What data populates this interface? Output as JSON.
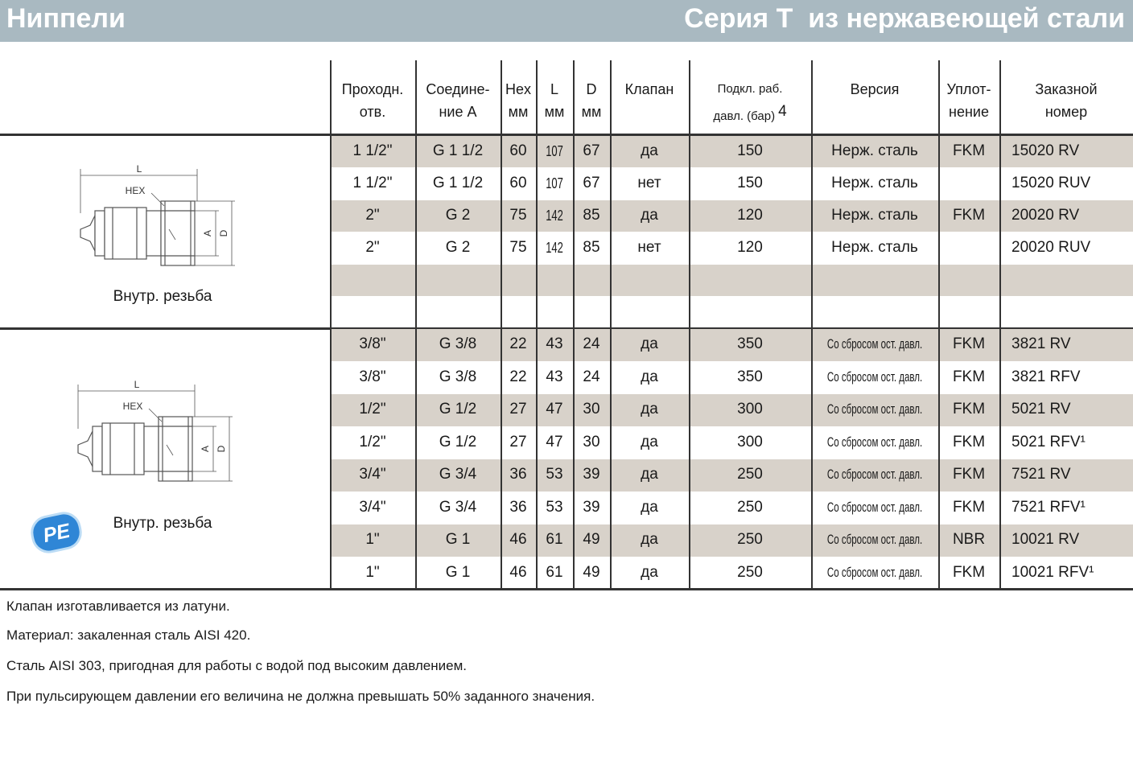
{
  "header": {
    "left_title": "Ниппели",
    "right_title": "Серия T  из нержавеющей стали"
  },
  "table": {
    "columns": [
      [
        "Проходн.",
        "отв."
      ],
      [
        "Соедине-",
        "ние A"
      ],
      [
        "Hex",
        "мм"
      ],
      [
        "L",
        "мм"
      ],
      [
        "D",
        "мм"
      ],
      [
        "Клапан"
      ],
      [
        "Подкл. раб.",
        "давл. (бар)"
      ],
      [
        "Версия"
      ],
      [
        "Уплот-",
        "нение"
      ],
      [
        "Заказной",
        "номер"
      ]
    ],
    "pressure_note": "4",
    "groups": [
      {
        "caption": "Внутр. резьба",
        "drawing": {
          "l": "L",
          "hex": "HEX",
          "a": "A",
          "d": "D"
        },
        "rows": [
          [
            "1 1/2\"",
            "G 1 1/2",
            "60",
            "107",
            "67",
            "да",
            "150",
            "Нерж. сталь",
            "FKM",
            "15020 RV"
          ],
          [
            "1 1/2\"",
            "G 1 1/2",
            "60",
            "107",
            "67",
            "нет",
            "150",
            "Нерж. сталь",
            null,
            "15020 RUV"
          ],
          [
            "2\"",
            "G 2",
            "75",
            "142",
            "85",
            "да",
            "120",
            "Нерж. сталь",
            "FKM",
            "20020 RV"
          ],
          [
            "2\"",
            "G 2",
            "75",
            "142",
            "85",
            "нет",
            "120",
            "Нерж. сталь",
            null,
            "20020 RUV"
          ]
        ]
      },
      {
        "caption": "Внутр. резьба",
        "drawing": {
          "l": "L",
          "hex": "HEX",
          "a": "A",
          "d": "D"
        },
        "badge": "PE",
        "rows": [
          [
            "3/8\"",
            "G 3/8",
            "22",
            "43",
            "24",
            "да",
            "350",
            "Со сбросом ост. давл.",
            "FKM",
            "3821 RV"
          ],
          [
            "3/8\"",
            "G 3/8",
            "22",
            "43",
            "24",
            "да",
            "350",
            "Со сбросом ост. давл.",
            "FKM",
            "3821 RFV"
          ],
          [
            "1/2\"",
            "G 1/2",
            "27",
            "47",
            "30",
            "да",
            "300",
            "Со сбросом ост. давл.",
            "FKM",
            "5021 RV"
          ],
          [
            "1/2\"",
            "G 1/2",
            "27",
            "47",
            "30",
            "да",
            "300",
            "Со сбросом ост. давл.",
            "FKM",
            "5021 RFV¹"
          ],
          [
            "3/4\"",
            "G 3/4",
            "36",
            "53",
            "39",
            "да",
            "250",
            "Со сбросом ост. давл.",
            "FKM",
            "7521 RV"
          ],
          [
            "3/4\"",
            "G 3/4",
            "36",
            "53",
            "39",
            "да",
            "250",
            "Со сбросом ост. давл.",
            "FKM",
            "7521 RFV¹"
          ],
          [
            "1\"",
            "G 1",
            "46",
            "61",
            "49",
            "да",
            "250",
            "Со сбросом ост. давл.",
            "NBR",
            "10021 RV"
          ],
          [
            "1\"",
            "G 1",
            "46",
            "61",
            "49",
            "да",
            "250",
            "Со сбросом ост. давл.",
            "FKM",
            "10021 RFV¹"
          ]
        ]
      }
    ]
  },
  "footnotes": [
    "Клапан изготавливается из латуни.",
    "Материал: закаленная сталь AISI 420.",
    "Сталь AISI 303, пригодная для работы с водой под высоким давлением.",
    "При пульсирующем давлении его величина не должна превышать 50% заданного значения."
  ]
}
